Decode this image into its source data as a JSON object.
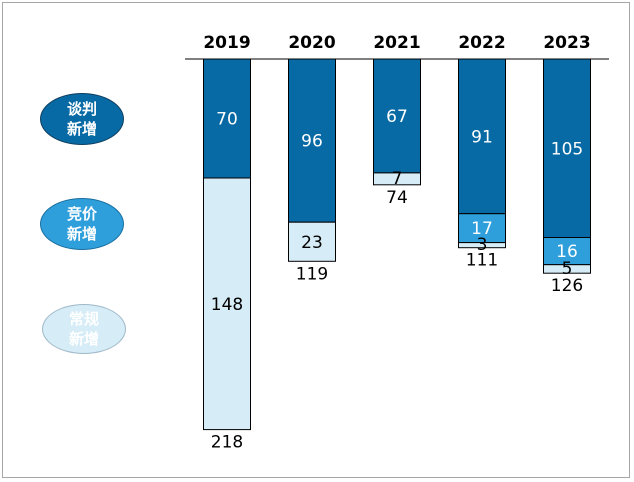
{
  "legend": [
    {
      "key": "negotiation",
      "label": "谈判新增",
      "color": "#086aa5"
    },
    {
      "key": "bidding",
      "label": "竞价新增",
      "color": "#2f9fdb"
    },
    {
      "key": "regular",
      "label": "常规新增",
      "color": "#d6ecf6"
    }
  ],
  "chart_data": {
    "type": "bar",
    "orientation": "vertical-stacked-downward",
    "categories": [
      "2019",
      "2020",
      "2021",
      "2022",
      "2023"
    ],
    "series": [
      {
        "name": "谈判新增",
        "values": [
          70,
          96,
          67,
          91,
          105
        ],
        "color": "#086aa5",
        "text_color": "#ffffff"
      },
      {
        "name": "竞价新增",
        "values": [
          0,
          0,
          0,
          17,
          16
        ],
        "color": "#2f9fdb",
        "text_color": "#ffffff"
      },
      {
        "name": "常规新增",
        "values": [
          148,
          23,
          7,
          3,
          5
        ],
        "color": "#d6ecf6",
        "text_color": "#000000"
      }
    ],
    "totals": [
      218,
      119,
      74,
      111,
      126
    ],
    "grid": false,
    "legend_position": "left"
  }
}
